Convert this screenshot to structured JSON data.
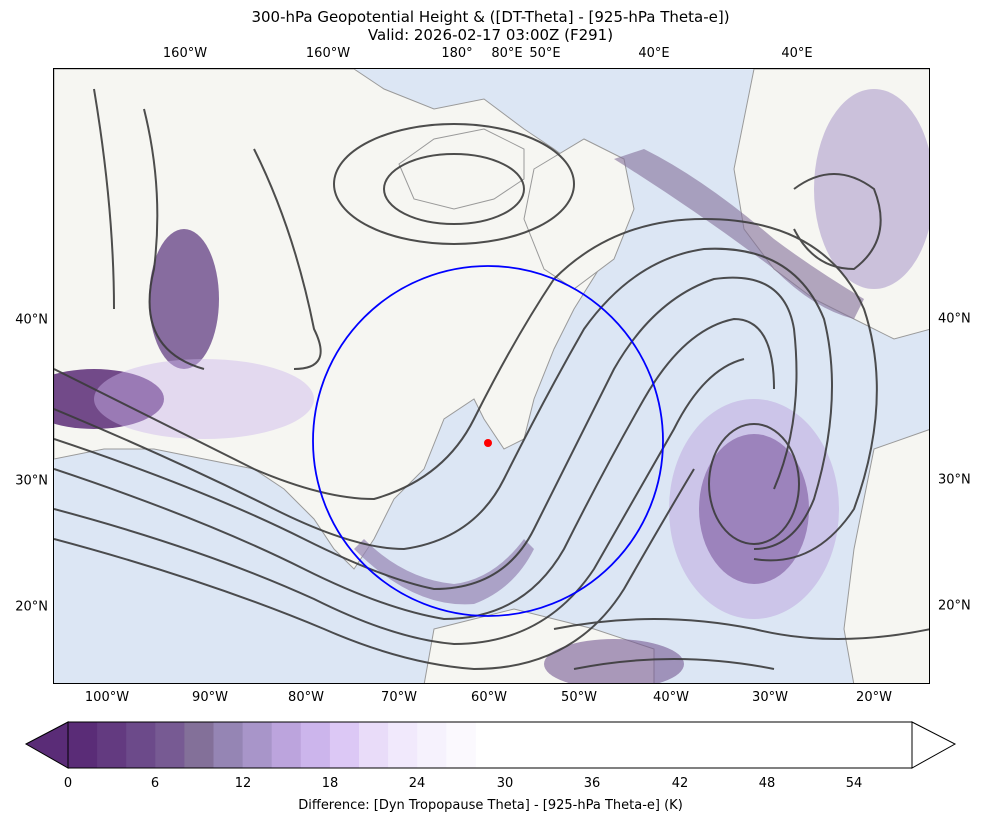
{
  "title": {
    "line1": "300-hPa Geopotential Height & ([DT-Theta] - [925-hPa Theta-e])",
    "line2": "Valid: 2026-02-17 03:00Z (F291)"
  },
  "top_ticks": [
    "160°W",
    "160°W",
    "180°",
    "80°E",
    "50°E",
    "40°E",
    "40°E"
  ],
  "bottom_ticks": [
    "100°W",
    "90°W",
    "80°W",
    "70°W",
    "60°W",
    "50°W",
    "40°W",
    "30°W",
    "20°W"
  ],
  "left_ticks": [
    "40°N",
    "30°N",
    "20°N"
  ],
  "right_ticks": [
    "40°N",
    "30°N",
    "20°N"
  ],
  "colorbar": {
    "label": "Difference: [Dyn Tropopause Theta] - [925-hPa Theta-e] (K)",
    "ticks": [
      "0",
      "6",
      "12",
      "18",
      "24",
      "30",
      "36",
      "42",
      "48",
      "54"
    ],
    "colors": [
      "#5a2c77",
      "#633a80",
      "#6c4a8a",
      "#775a93",
      "#837099",
      "#9585b4",
      "#a895c9",
      "#bca4dd",
      "#ccb5ec",
      "#dcc8f5",
      "#e9dcf9",
      "#f1e9fc",
      "#f6f2fd",
      "#fbf9fe"
    ],
    "extend": "both"
  },
  "map": {
    "ocean_color": "#dce6f4",
    "land_color": "#f6f6f2",
    "contour_color": "#3b3b3b",
    "circle_color": "#0000ff",
    "marker_color": "#ff0000"
  }
}
